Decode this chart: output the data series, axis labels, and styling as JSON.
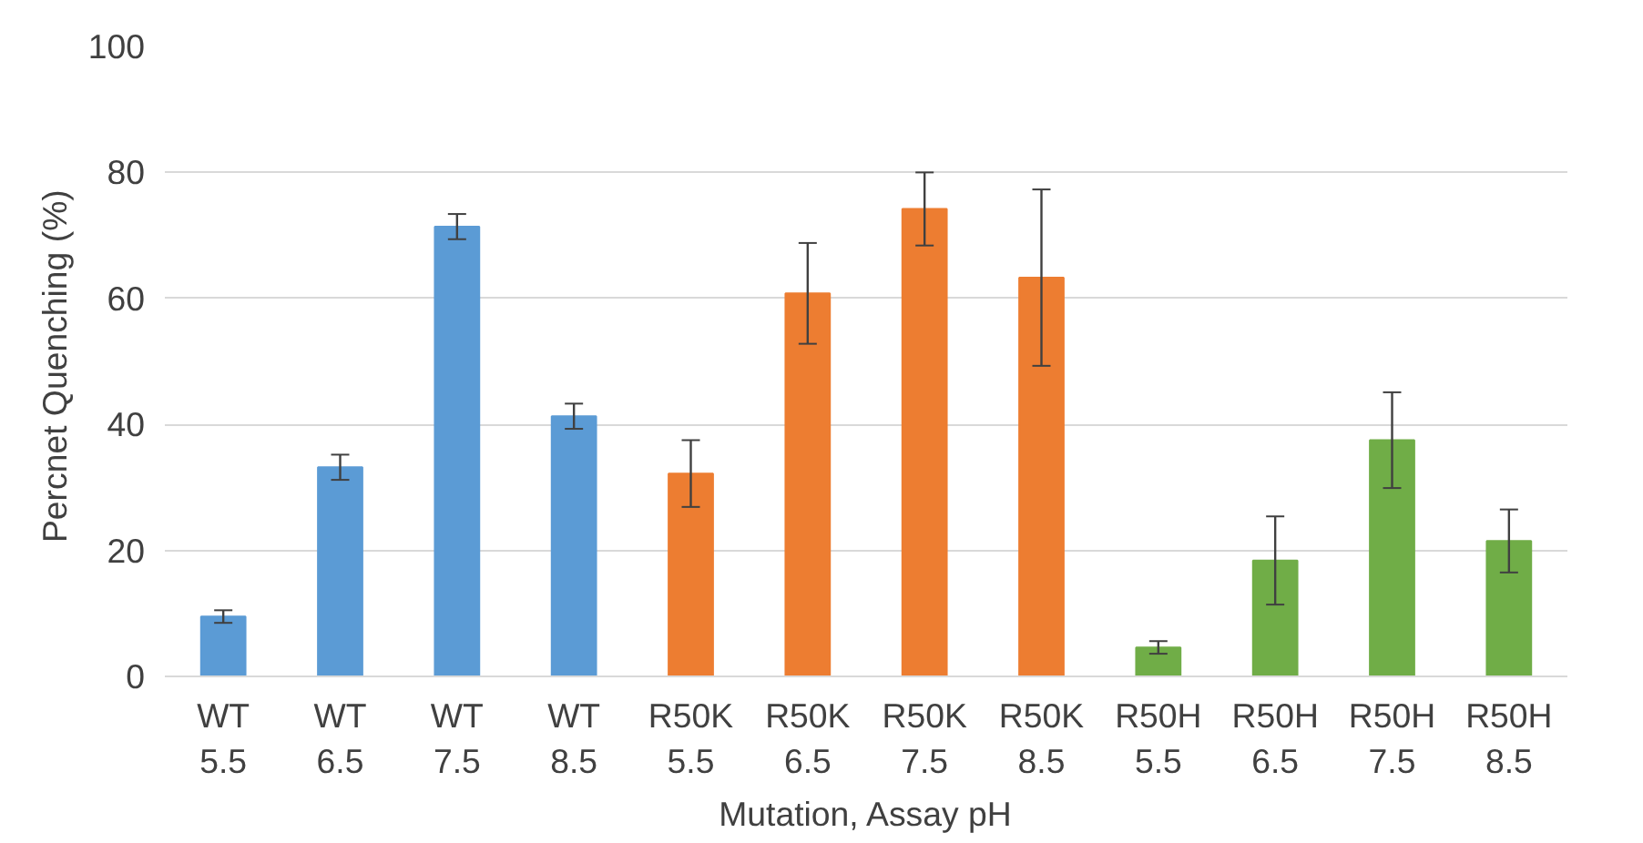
{
  "chart_data": {
    "type": "bar",
    "xlabel": "Mutation, Assay pH",
    "ylabel": "Percnet Quenching  (%)",
    "categories": [
      "WT\n5.5",
      "WT\n6.5",
      "WT\n7.5",
      "WT\n8.5",
      "R50K\n5.5",
      "R50K\n6.5",
      "R50K\n7.5",
      "R50K\n8.5",
      "R50H\n5.5",
      "R50H\n6.5",
      "R50H\n7.5",
      "R50H\n8.5"
    ],
    "values": [
      9.5,
      33.2,
      71.4,
      41.3,
      32.2,
      60.8,
      74.2,
      63.3,
      4.6,
      18.4,
      37.5,
      21.5
    ],
    "errors": [
      1,
      2,
      2,
      2,
      5.3,
      8,
      5.8,
      14,
      1,
      7,
      7.6,
      5
    ],
    "colors": [
      "#5b9bd5",
      "#5b9bd5",
      "#5b9bd5",
      "#5b9bd5",
      "#ed7d31",
      "#ed7d31",
      "#ed7d31",
      "#ed7d31",
      "#70ad47",
      "#70ad47",
      "#70ad47",
      "#70ad47"
    ],
    "ylim": [
      0,
      100
    ],
    "yticks": [
      0,
      20,
      40,
      60,
      80,
      100
    ],
    "grid": "y"
  }
}
